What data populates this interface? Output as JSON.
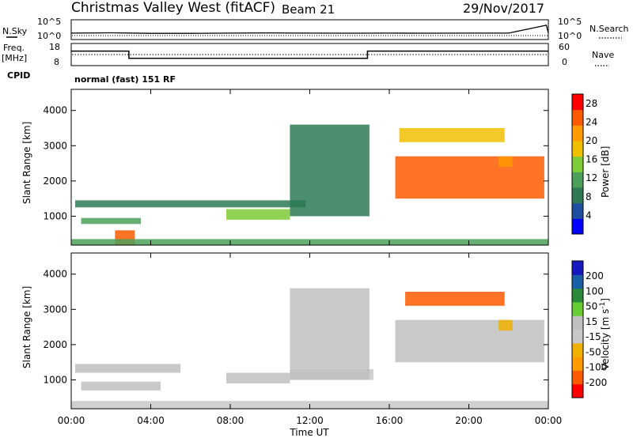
{
  "header": {
    "title": "Christmas Valley West (fitACF)",
    "beam": "Beam 21",
    "date": "29/Nov/2017"
  },
  "left_labels": {
    "nsky": "N.Sky",
    "freq_line1": "Freq.",
    "freq_line2": "[MHz]",
    "cpid": "CPID"
  },
  "right_labels": {
    "nsearch": "N.Search",
    "nave": "Nave"
  },
  "cpid_text": "normal (fast) 151 RF",
  "noise_panel": {
    "left_ticks": [
      "10^5",
      "10^0"
    ],
    "right_ticks": [
      "10^5",
      "10^0"
    ]
  },
  "freq_panel": {
    "left_ticks": [
      "18",
      "8"
    ],
    "right_ticks": [
      "60",
      "0"
    ]
  },
  "xaxis": {
    "label": "Time UT",
    "ticks": [
      "00:00",
      "04:00",
      "08:00",
      "12:00",
      "16:00",
      "20:00",
      "00:00"
    ]
  },
  "yaxis": {
    "label": "Slant Range [km]",
    "ticks": [
      "1000",
      "2000",
      "3000",
      "4000"
    ]
  },
  "colors": {
    "power": [
      "#0000ff",
      "#1e4fa0",
      "#2e7a55",
      "#4ca05a",
      "#7ccb38",
      "#f0c000",
      "#ff9a00",
      "#ff5a00",
      "#ff0000"
    ],
    "velocity": [
      "#ff0000",
      "#ff5a00",
      "#ff9a00",
      "#f0b000",
      "#c8c8c8",
      "#bfbfbf",
      "#66cc33",
      "#2a8a3a",
      "#1a5ea8",
      "#1818c0"
    ]
  },
  "chart_data": [
    {
      "type": "line",
      "title": "N.Sky",
      "x_range": [
        0,
        24
      ],
      "y_scale": "log",
      "ylim": [
        1,
        100000
      ],
      "series": [
        {
          "x": [
            0,
            2,
            4,
            6,
            8,
            10,
            12,
            14,
            16,
            18,
            20,
            22,
            23.9,
            24
          ],
          "y": [
            12,
            15,
            10,
            10,
            12,
            14,
            12,
            11,
            12,
            11,
            12,
            12,
            5000,
            12
          ]
        }
      ]
    },
    {
      "type": "line",
      "title": "Freq.",
      "x_range": [
        0,
        24
      ],
      "ylim": [
        8,
        18
      ],
      "series": [
        {
          "x": [
            0,
            2.9,
            2.9,
            14.9,
            14.9,
            24
          ],
          "y": [
            15,
            15,
            10.8,
            10.8,
            15,
            15
          ]
        }
      ]
    },
    {
      "type": "heatmap",
      "title": "",
      "xlabel": "Time UT",
      "ylabel": "Slant Range [km]",
      "xlim": [
        0,
        24
      ],
      "ylim": [
        180,
        4600
      ],
      "colorbar": {
        "label": "Power [dB]",
        "ticks": [
          "4",
          "8",
          "12",
          "16",
          "20",
          "24",
          "28"
        ],
        "range": [
          0,
          30
        ]
      },
      "regions": [
        {
          "x": [
            0.2,
            11.8
          ],
          "y": [
            1250,
            1450
          ],
          "value": 8
        },
        {
          "x": [
            0.5,
            3.5
          ],
          "y": [
            780,
            950
          ],
          "value": 12
        },
        {
          "x": [
            7.8,
            11.0
          ],
          "y": [
            900,
            1200
          ],
          "value": 14
        },
        {
          "x": [
            2.2,
            3.2
          ],
          "y": [
            180,
            600
          ],
          "value": 24
        },
        {
          "x": [
            0,
            24
          ],
          "y": [
            180,
            350
          ],
          "value": 10
        },
        {
          "x": [
            16.3,
            23.8
          ],
          "y": [
            1500,
            2700
          ],
          "value": 26
        },
        {
          "x": [
            16.5,
            21.8
          ],
          "y": [
            3100,
            3500
          ],
          "value": 18
        },
        {
          "x": [
            21.5,
            22.2
          ],
          "y": [
            2400,
            2700
          ],
          "value": 20
        },
        {
          "x": [
            11.0,
            15.0
          ],
          "y": [
            1000,
            3600
          ],
          "value": 8
        }
      ]
    },
    {
      "type": "heatmap",
      "title": "",
      "xlabel": "Time UT",
      "ylabel": "Slant Range [km]",
      "xlim": [
        0,
        24
      ],
      "ylim": [
        180,
        4600
      ],
      "colorbar": {
        "label": "Velocity [m s^-1]",
        "ticks": [
          "200",
          "100",
          "50",
          "15",
          "-15",
          "-50",
          "-100",
          "-200"
        ],
        "range": [
          -250,
          250
        ]
      },
      "regions": [
        {
          "x": [
            0.2,
            5.5
          ],
          "y": [
            1200,
            1450
          ],
          "value": 40
        },
        {
          "x": [
            0.5,
            4.5
          ],
          "y": [
            700,
            950
          ],
          "value": 40
        },
        {
          "x": [
            7.8,
            11.0
          ],
          "y": [
            900,
            1200
          ],
          "value": 0
        },
        {
          "x": [
            11.0,
            15.2
          ],
          "y": [
            1000,
            1300
          ],
          "value": -40
        },
        {
          "x": [
            0,
            24
          ],
          "y": [
            180,
            400
          ],
          "value": -40
        },
        {
          "x": [
            16.3,
            23.8
          ],
          "y": [
            1500,
            2700
          ],
          "value": 0
        },
        {
          "x": [
            16.8,
            21.8
          ],
          "y": [
            3100,
            3500
          ],
          "value": -200
        },
        {
          "x": [
            21.5,
            22.2
          ],
          "y": [
            2400,
            2700
          ],
          "value": -80
        },
        {
          "x": [
            11.0,
            15.0
          ],
          "y": [
            1000,
            3600
          ],
          "value": 20
        }
      ]
    }
  ]
}
